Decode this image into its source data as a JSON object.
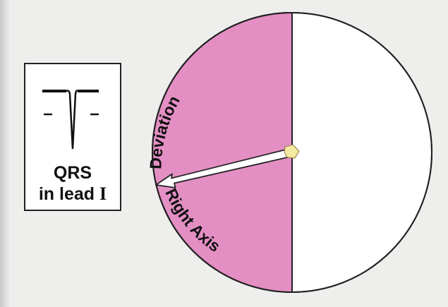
{
  "qrs_box": {
    "label_line1": "QRS",
    "label_line2_text": "in lead ",
    "label_line2_numeral": "I"
  },
  "wheel": {
    "upper_label": "Deviation",
    "lower_label": "Right Axis",
    "colors": {
      "shaded_half": "#e48fc4",
      "unshaded_half": "#ffffff",
      "outline": "#222222",
      "arrow_fill": "#ffffff",
      "arrow_tail": "#f4e9a0"
    }
  }
}
